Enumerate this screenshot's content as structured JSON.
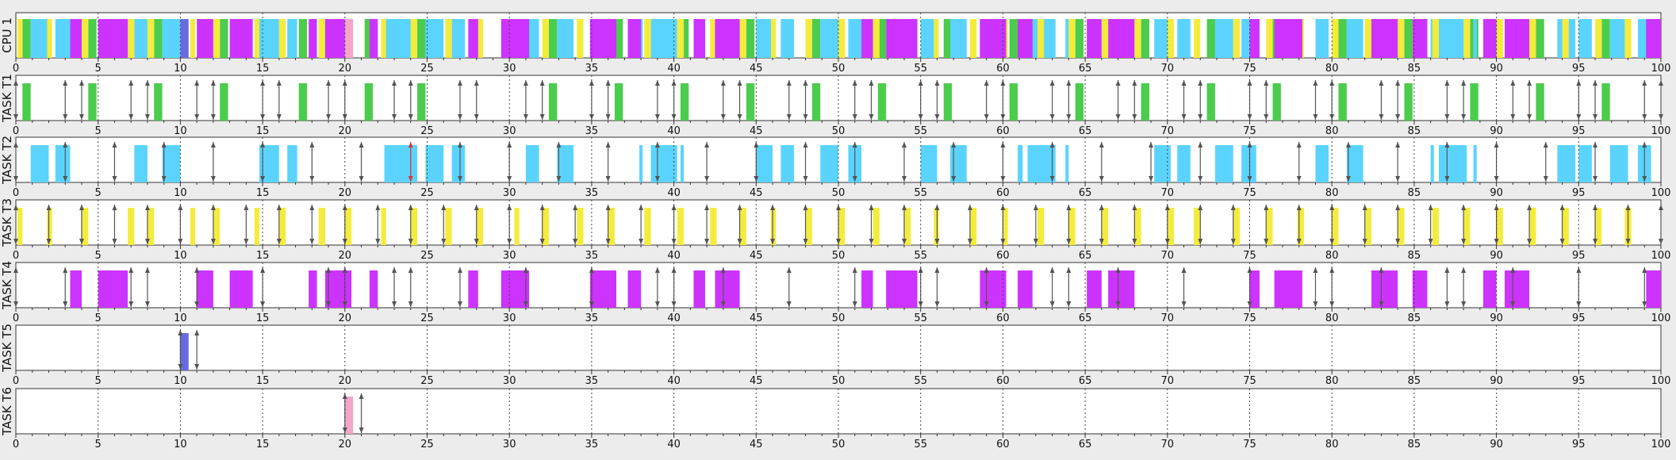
{
  "chart_data": {
    "type": "gantt",
    "x_range": [
      0,
      100
    ],
    "tick_labels": [
      "0",
      "5",
      "10",
      "15",
      "20",
      "25",
      "30",
      "35",
      "40",
      "45",
      "50",
      "55",
      "60",
      "65",
      "70",
      "75",
      "80",
      "85",
      "90",
      "95",
      "100"
    ],
    "grid": "dotted vertical lines every 5 units",
    "colors": {
      "T1": "#4ccc4c",
      "T2": "#5ad4ff",
      "T3": "#f4ec3c",
      "T4": "#cc33ff",
      "T5": "#6a6ae0",
      "T6": "#f4a6c8",
      "arrow": "#555555",
      "missed_deadline_arrow": "#dd3333"
    },
    "rows": [
      {
        "key": "CPU",
        "label": "CPU 1"
      },
      {
        "key": "T1",
        "label": "TASK T1"
      },
      {
        "key": "T2",
        "label": "TASK T2"
      },
      {
        "key": "T3",
        "label": "TASK T3"
      },
      {
        "key": "T4",
        "label": "TASK T4"
      },
      {
        "key": "T5",
        "label": "TASK T5"
      },
      {
        "key": "T6",
        "label": "TASK T6"
      }
    ],
    "tasks": {
      "T1": {
        "segments": [
          [
            0.4,
            0.9
          ],
          [
            4.4,
            4.9
          ],
          [
            8.4,
            8.9
          ],
          [
            12.4,
            12.9
          ],
          [
            17.2,
            17.7
          ],
          [
            21.2,
            21.7
          ],
          [
            24.4,
            24.9
          ],
          [
            32.4,
            32.9
          ],
          [
            36.4,
            36.9
          ],
          [
            40.4,
            40.9
          ],
          [
            44.4,
            44.9
          ],
          [
            48.4,
            48.9
          ],
          [
            52.4,
            52.9
          ],
          [
            56.4,
            56.9
          ],
          [
            60.4,
            60.9
          ],
          [
            64.4,
            64.9
          ],
          [
            68.4,
            68.9
          ],
          [
            72.4,
            72.9
          ],
          [
            76.4,
            76.9
          ],
          [
            80.4,
            80.9
          ],
          [
            84.4,
            84.9
          ],
          [
            88.4,
            88.9
          ],
          [
            92.4,
            92.9
          ],
          [
            96.4,
            96.9
          ]
        ],
        "arrows": [
          0,
          3,
          4,
          7,
          8,
          11,
          12,
          15,
          16,
          19,
          20,
          23,
          24,
          27,
          28,
          31,
          32,
          35,
          36,
          39,
          40,
          43,
          44,
          47,
          48,
          51,
          52,
          55,
          56,
          59,
          60,
          63,
          64,
          67,
          68,
          71,
          72,
          75,
          76,
          79,
          80,
          83,
          84,
          87,
          88,
          91,
          92,
          95,
          96,
          99,
          100
        ]
      },
      "T2": {
        "segments": [
          [
            0.9,
            2.0
          ],
          [
            2.4,
            3.3
          ],
          [
            7.2,
            8.0
          ],
          [
            8.9,
            10.0
          ],
          [
            14.8,
            16.0
          ],
          [
            16.5,
            17.1
          ],
          [
            22.4,
            24.4
          ],
          [
            24.9,
            26.0
          ],
          [
            26.5,
            27.3
          ],
          [
            31.0,
            31.8
          ],
          [
            32.9,
            33.9
          ],
          [
            37.9,
            38.1
          ],
          [
            38.6,
            40.2
          ],
          [
            40.4,
            40.6
          ],
          [
            45.0,
            46.0
          ],
          [
            46.5,
            47.3
          ],
          [
            48.9,
            50.0
          ],
          [
            50.6,
            51.4
          ],
          [
            55.0,
            56.0
          ],
          [
            56.8,
            57.8
          ],
          [
            60.9,
            61.2
          ],
          [
            61.5,
            63.2
          ],
          [
            63.8,
            64.0
          ],
          [
            69.2,
            70.2
          ],
          [
            70.6,
            71.4
          ],
          [
            72.9,
            74.0
          ],
          [
            74.5,
            75.4
          ],
          [
            79.0,
            79.8
          ],
          [
            80.9,
            81.9
          ],
          [
            86.0,
            86.2
          ],
          [
            86.5,
            88.2
          ],
          [
            88.6,
            88.8
          ],
          [
            93.7,
            94.8
          ],
          [
            95.0,
            95.8
          ],
          [
            96.9,
            98.0
          ],
          [
            98.6,
            99.4
          ]
        ],
        "arrows": [
          0,
          3,
          6,
          9,
          12,
          15,
          18,
          21,
          24,
          27,
          30,
          33,
          36,
          39,
          42,
          45,
          48,
          51,
          54,
          57,
          60,
          63,
          66,
          69,
          72,
          75,
          78,
          81,
          84,
          87,
          90,
          93,
          96,
          99
        ],
        "missed": [
          24
        ]
      },
      "T3": {
        "segments": [
          [
            0.1,
            0.4
          ],
          [
            1.9,
            2.2
          ],
          [
            4.0,
            4.4
          ],
          [
            6.8,
            7.2
          ],
          [
            8.0,
            8.4
          ],
          [
            10.6,
            10.9
          ],
          [
            12.0,
            12.4
          ],
          [
            14.5,
            14.8
          ],
          [
            16.0,
            16.4
          ],
          [
            18.4,
            18.8
          ],
          [
            20.0,
            20.4
          ],
          [
            22.2,
            22.5
          ],
          [
            24.0,
            24.4
          ],
          [
            26.1,
            26.5
          ],
          [
            28.0,
            28.4
          ],
          [
            30.3,
            30.6
          ],
          [
            32.0,
            32.4
          ],
          [
            34.1,
            34.5
          ],
          [
            36.0,
            36.4
          ],
          [
            38.2,
            38.6
          ],
          [
            40.2,
            40.6
          ],
          [
            42.2,
            42.6
          ],
          [
            44.0,
            44.4
          ],
          [
            45.9,
            46.2
          ],
          [
            48.0,
            48.4
          ],
          [
            50.0,
            50.4
          ],
          [
            52.1,
            52.5
          ],
          [
            54.0,
            54.4
          ],
          [
            55.8,
            56.1
          ],
          [
            58.0,
            58.4
          ],
          [
            60.0,
            60.3
          ],
          [
            62.1,
            62.5
          ],
          [
            64.0,
            64.4
          ],
          [
            66.0,
            66.4
          ],
          [
            68.0,
            68.4
          ],
          [
            70.0,
            70.4
          ],
          [
            71.6,
            72.0
          ],
          [
            74.0,
            74.4
          ],
          [
            76.0,
            76.4
          ],
          [
            77.9,
            78.3
          ],
          [
            80.0,
            80.4
          ],
          [
            82.0,
            82.4
          ],
          [
            84.0,
            84.4
          ],
          [
            86.1,
            86.5
          ],
          [
            88.0,
            88.4
          ],
          [
            90.0,
            90.4
          ],
          [
            92.0,
            92.4
          ],
          [
            94.0,
            94.4
          ],
          [
            96.0,
            96.4
          ],
          [
            97.8,
            98.2
          ]
        ],
        "arrows": [
          0,
          2,
          4,
          6,
          8,
          10,
          12,
          14,
          16,
          18,
          20,
          22,
          24,
          26,
          28,
          30,
          32,
          34,
          36,
          38,
          40,
          42,
          44,
          46,
          48,
          50,
          52,
          54,
          56,
          58,
          60,
          62,
          64,
          66,
          68,
          70,
          72,
          74,
          76,
          78,
          80,
          82,
          84,
          86,
          88,
          90,
          92,
          94,
          96,
          98,
          100
        ]
      },
      "T4": {
        "segments": [
          [
            3.3,
            4.0
          ],
          [
            5.0,
            6.8
          ],
          [
            11.0,
            12.0
          ],
          [
            13.0,
            14.4
          ],
          [
            17.8,
            18.3
          ],
          [
            18.8,
            20.4
          ],
          [
            21.5,
            22.0
          ],
          [
            27.5,
            28.1
          ],
          [
            29.5,
            31.2
          ],
          [
            34.9,
            36.5
          ],
          [
            37.2,
            38.0
          ],
          [
            41.2,
            41.9
          ],
          [
            42.5,
            44.0
          ],
          [
            51.4,
            52.1
          ],
          [
            52.9,
            54.8
          ],
          [
            58.6,
            60.2
          ],
          [
            60.9,
            61.8
          ],
          [
            65.1,
            66.0
          ],
          [
            66.4,
            68.0
          ],
          [
            75.0,
            75.6
          ],
          [
            76.5,
            78.2
          ],
          [
            82.4,
            84.0
          ],
          [
            84.9,
            85.8
          ],
          [
            89.2,
            90.0
          ],
          [
            90.5,
            92.0
          ],
          [
            99.1,
            100.0
          ]
        ],
        "arrows": [
          0,
          3,
          7,
          8,
          11,
          15,
          19,
          20,
          23,
          24,
          27,
          31,
          35,
          39,
          40,
          43,
          47,
          51,
          55,
          56,
          59,
          63,
          64,
          67,
          71,
          75,
          79,
          80,
          83,
          87,
          88,
          91,
          95,
          99
        ]
      },
      "T5": {
        "segments": [
          [
            10.0,
            10.5
          ]
        ],
        "arrows": [
          10,
          11
        ]
      },
      "T6": {
        "segments": [
          [
            20.0,
            20.5
          ]
        ],
        "arrows": [
          20,
          21
        ]
      }
    },
    "cpu_extra_gaps": [
      [
        47.6,
        48.1
      ],
      [
        71.5,
        72.1
      ],
      [
        96.4,
        96.9
      ]
    ]
  }
}
